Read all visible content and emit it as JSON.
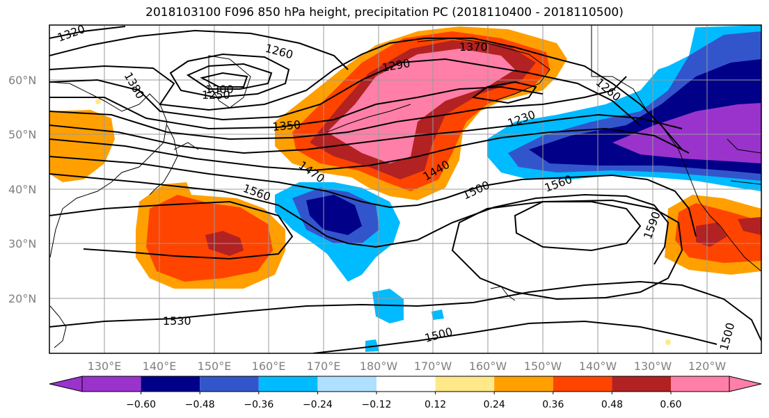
{
  "title": "2018103100 F096 850 hPa height, precipitation PC (2018110400 - 2018110500)",
  "map": {
    "lat_labels": [
      "60°N",
      "50°N",
      "40°N",
      "30°N",
      "20°N"
    ],
    "lon_labels": [
      "130°E",
      "140°E",
      "150°E",
      "160°E",
      "170°E",
      "180°W",
      "170°W",
      "160°W",
      "150°W",
      "140°W",
      "130°W",
      "120°W"
    ],
    "contour_labels": [
      "1320",
      "1260",
      "1290",
      "1370",
      "1380",
      "1300",
      "1250",
      "1350",
      "1230",
      "1260",
      "1470",
      "1440",
      "1500",
      "1560",
      "1560",
      "1590",
      "1530",
      "1500",
      "1500"
    ],
    "grid": true
  },
  "colorbar": {
    "ticks": [
      "−0.60",
      "−0.48",
      "−0.36",
      "−0.24",
      "−0.12",
      "0.12",
      "0.24",
      "0.36",
      "0.48",
      "0.60"
    ],
    "colors": [
      "#9933cc",
      "#000088",
      "#3355cc",
      "#00bbff",
      "#b0e0ff",
      "#ffffff",
      "#ffe888",
      "#ffa000",
      "#ff4400",
      "#b22222",
      "#ff7fa8"
    ]
  }
}
